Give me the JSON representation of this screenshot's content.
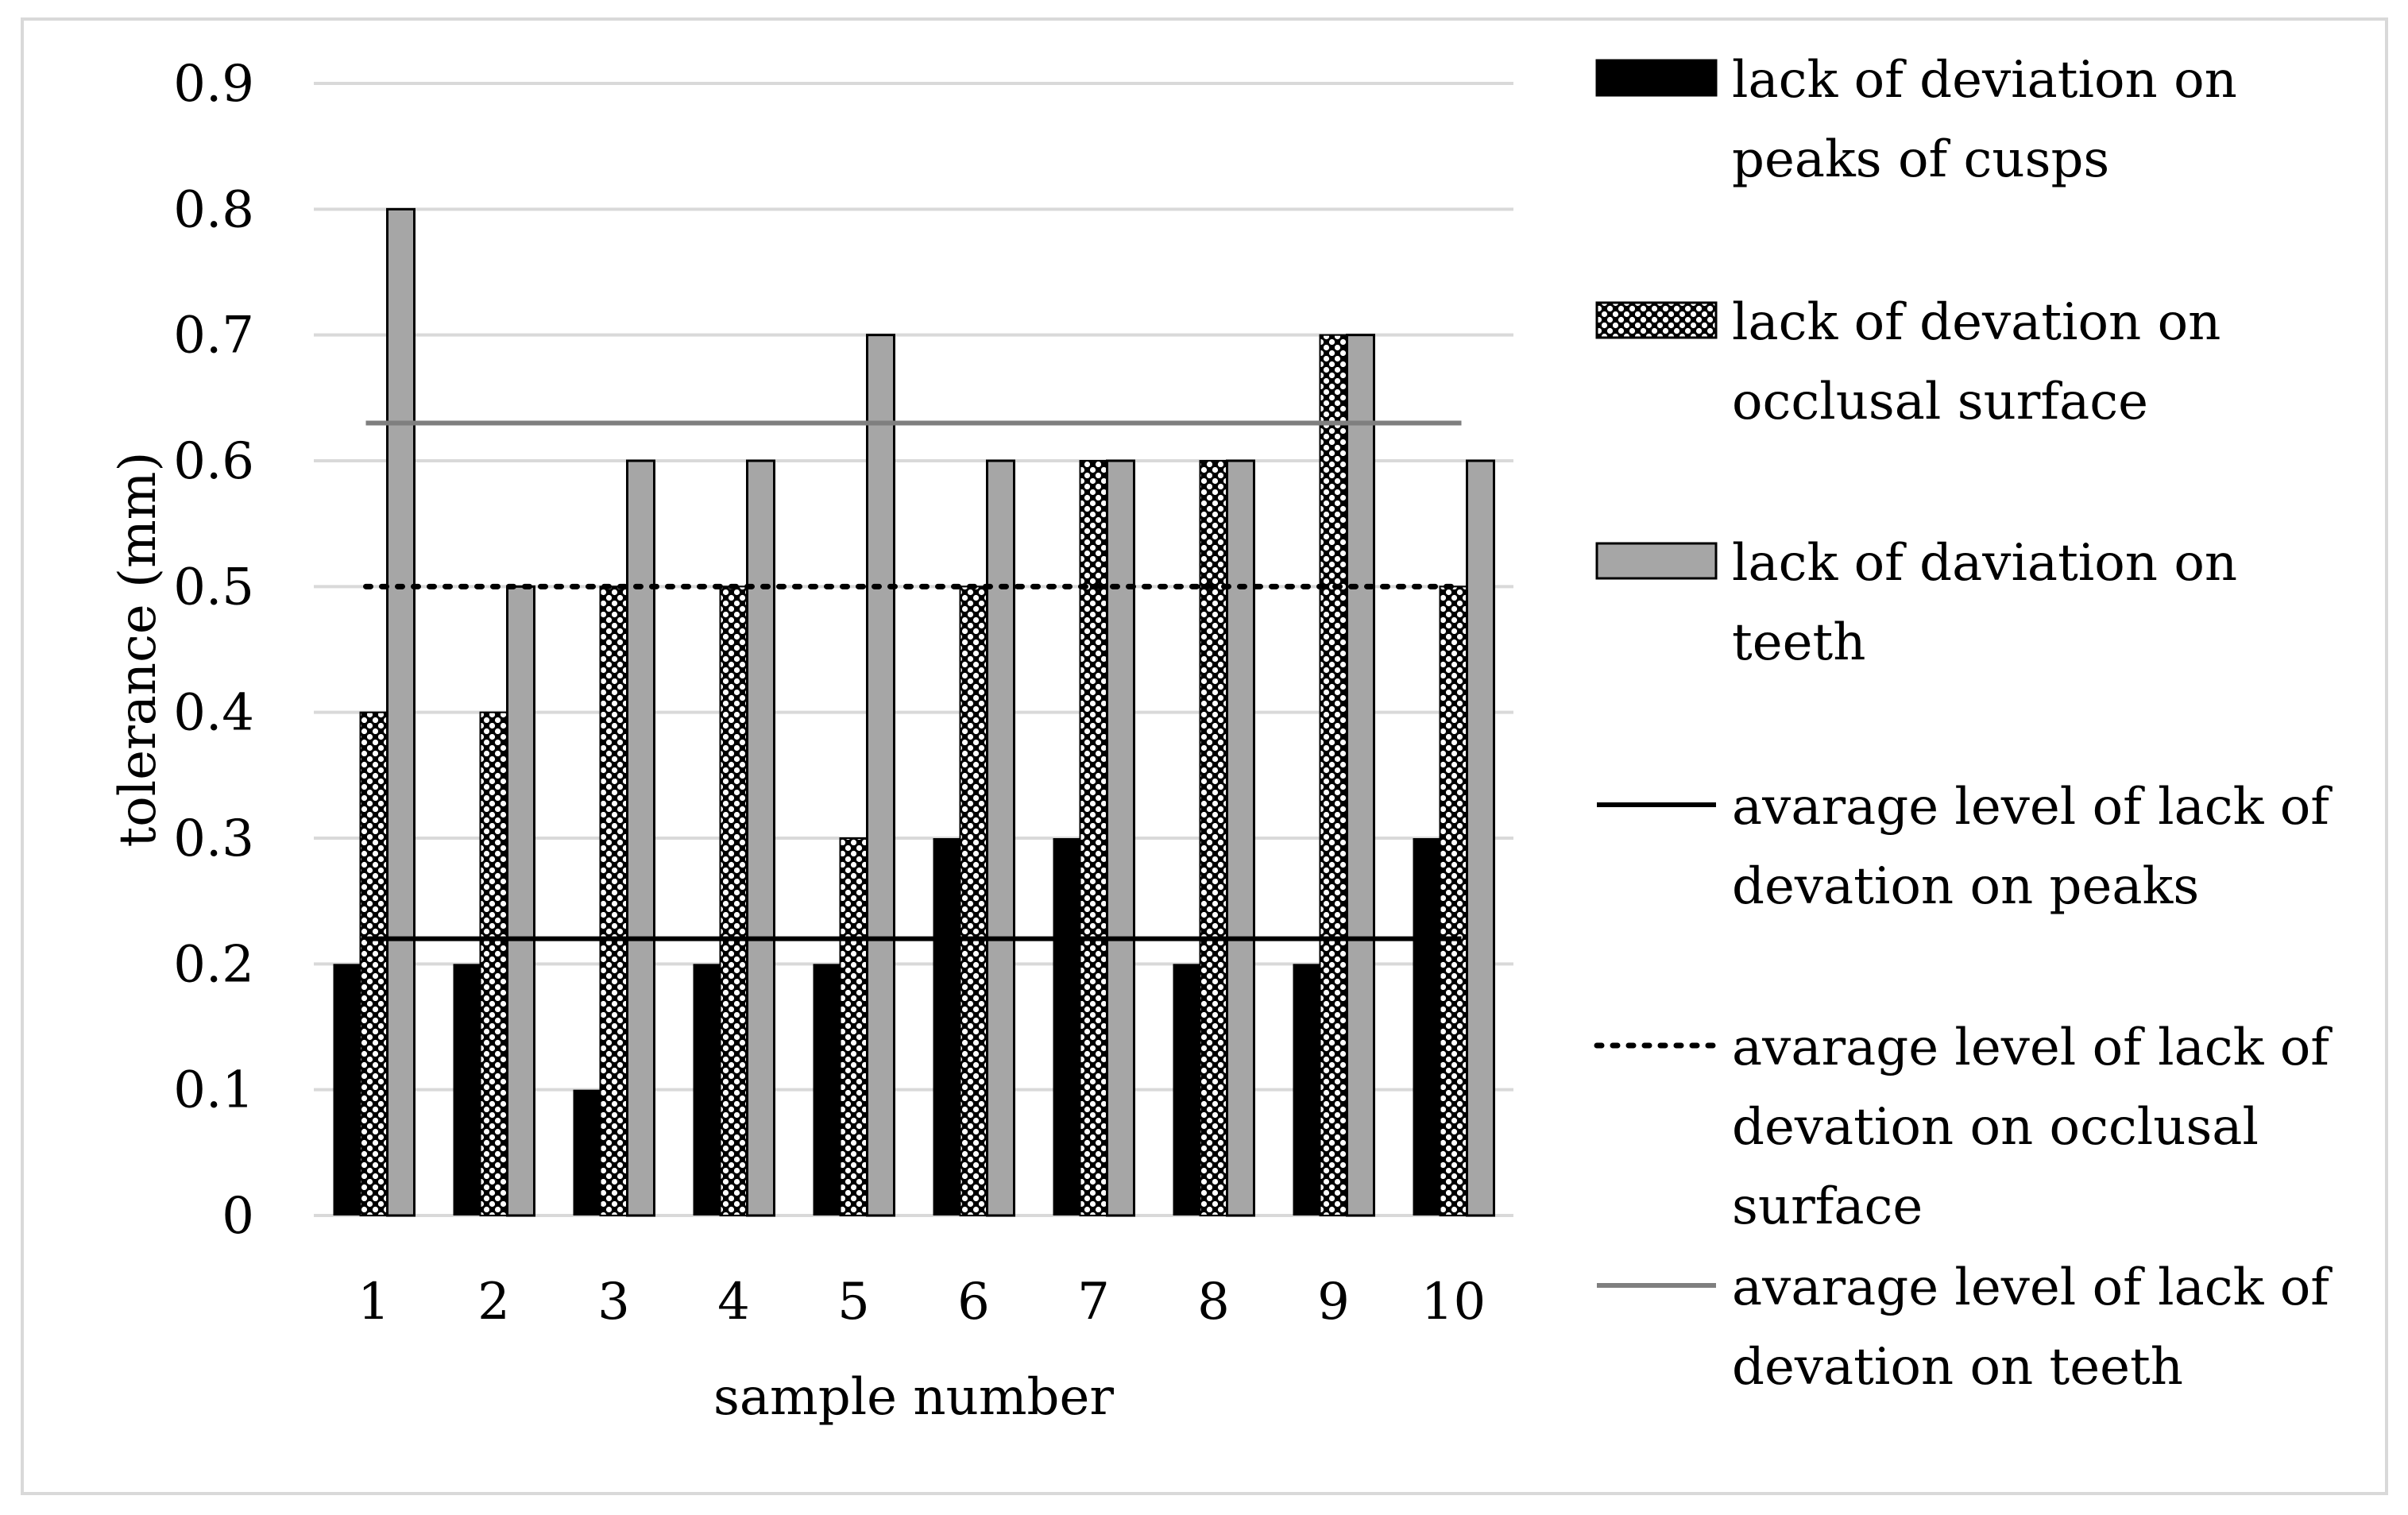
{
  "chart_data": {
    "type": "bar",
    "title": "",
    "xlabel": "sample number",
    "ylabel": "tolerance  (mm)",
    "ylim": [
      0,
      0.9
    ],
    "y_ticks": [
      "0",
      "0.1",
      "0.2",
      "0.3",
      "0.4",
      "0.5",
      "0.6",
      "0.7",
      "0.8",
      "0.9"
    ],
    "grid": true,
    "legend_position": "right",
    "categories": [
      "1",
      "2",
      "3",
      "4",
      "5",
      "6",
      "7",
      "8",
      "9",
      "10"
    ],
    "series": [
      {
        "name": "lack of deviation on peaks of cusps",
        "legend_lines": [
          "lack of deviation on",
          "peaks of cusps"
        ],
        "kind": "bar",
        "pattern": "solid-black",
        "color": "#000000",
        "values": [
          0.2,
          0.2,
          0.1,
          0.2,
          0.2,
          0.3,
          0.3,
          0.2,
          0.2,
          0.3
        ]
      },
      {
        "name": "lack of devation on occlusal surface",
        "legend_lines": [
          "lack of devation on",
          "occlusal surface"
        ],
        "kind": "bar",
        "pattern": "dotted-black",
        "color": "#000000",
        "values": [
          0.4,
          0.4,
          0.5,
          0.5,
          0.3,
          0.5,
          0.6,
          0.6,
          0.7,
          0.5
        ]
      },
      {
        "name": "lack of daviation on teeth",
        "legend_lines": [
          "lack of daviation on",
          "teeth"
        ],
        "kind": "bar",
        "pattern": "solid-gray",
        "color": "#a6a6a6",
        "values": [
          0.8,
          0.5,
          0.6,
          0.6,
          0.7,
          0.6,
          0.6,
          0.6,
          0.7,
          0.6
        ]
      },
      {
        "name": "avarage level of lack of devation on peaks",
        "legend_lines": [
          "avarage level of lack of",
          "devation on peaks"
        ],
        "kind": "line",
        "style": "solid",
        "color": "#000000",
        "value": 0.22
      },
      {
        "name": "avarage level of lack of devation on occlusal surface",
        "legend_lines": [
          "avarage level of lack of",
          "devation on occlusal",
          "surface"
        ],
        "kind": "line",
        "style": "dotted",
        "color": "#000000",
        "value": 0.5
      },
      {
        "name": "avarage level of lack of devation on teeth",
        "legend_lines": [
          "avarage level of lack of",
          "devation on teeth"
        ],
        "kind": "line",
        "style": "solid",
        "color": "#7f7f7f",
        "value": 0.63
      }
    ]
  }
}
